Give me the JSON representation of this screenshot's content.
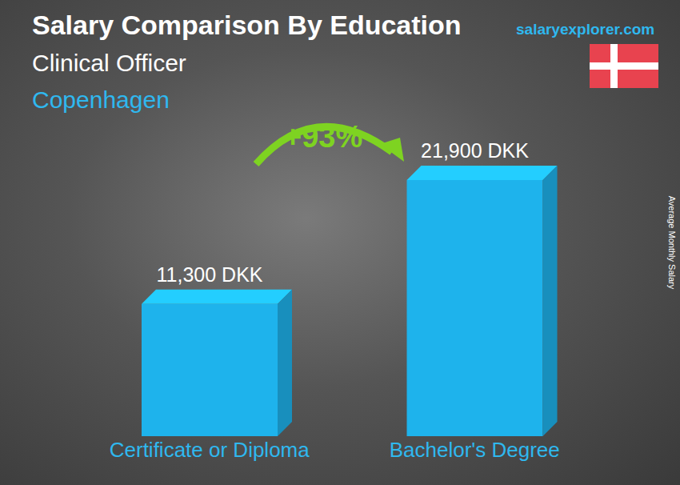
{
  "chart_data": {
    "type": "bar",
    "title": "Salary Comparison By Education",
    "subtitle": [
      "Clinical Officer",
      "Copenhagen"
    ],
    "annotations": [
      "+93%",
      "salaryexplorer.com"
    ],
    "y_label": "Average Monthly Salary",
    "categories": [
      "Certificate or Diploma",
      "Bachelor's Degree"
    ],
    "values": [
      11300,
      21900
    ],
    "value_labels": [
      "11,300 DKK",
      "21,900 DKK"
    ],
    "color": "#1eb3ec",
    "ylim": [
      0,
      26000
    ],
    "data_labels": true,
    "tick_labels": "x",
    "grid": false
  }
}
